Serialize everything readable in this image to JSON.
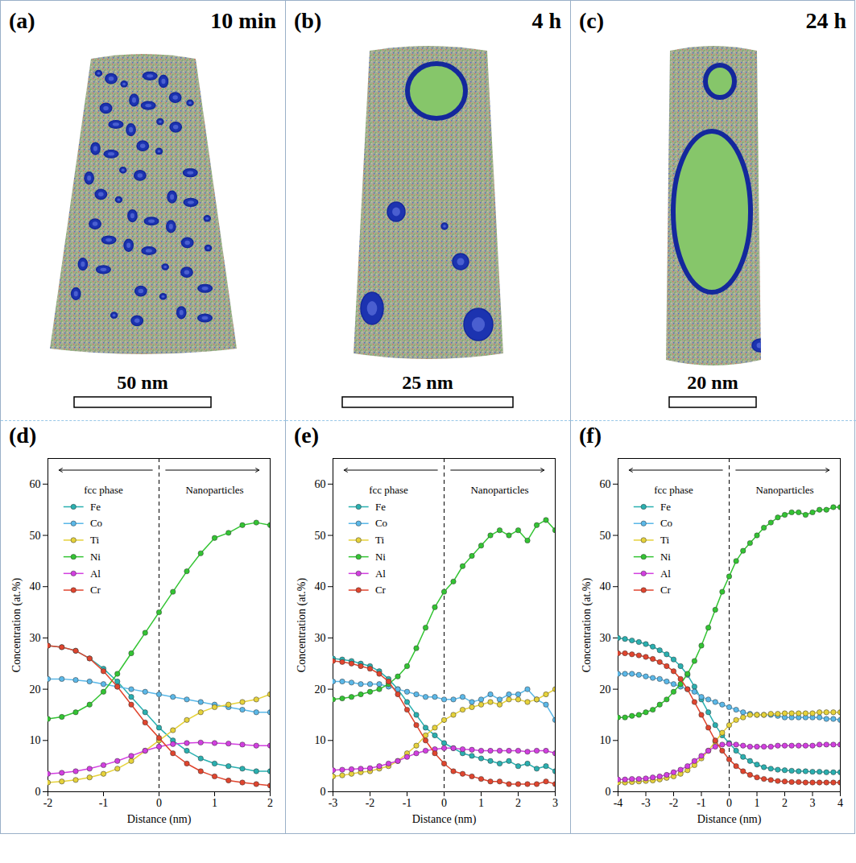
{
  "panels": [
    {
      "label": "(a)",
      "time": "10 min",
      "scale_bar": "50 nm"
    },
    {
      "label": "(b)",
      "time": "4 h",
      "scale_bar": "25 nm"
    },
    {
      "label": "(c)",
      "time": "24 h",
      "scale_bar": "20 nm"
    }
  ],
  "chart_data": [
    {
      "type": "line",
      "title": "(d)",
      "x_label": "Distance (nm)",
      "y_label": "Concentration (at.%)",
      "xlim": [
        -2,
        2
      ],
      "xticks": [
        -2,
        -1,
        0,
        1,
        2
      ],
      "ylim": [
        0,
        65
      ],
      "yticks": [
        0,
        10,
        20,
        30,
        40,
        50,
        60
      ],
      "marker": "circle",
      "line_style": "solid",
      "legend": "upper left",
      "vline": 0,
      "annotations": [
        "fcc phase",
        "Nanoparticles"
      ],
      "x": [
        -2,
        -1.75,
        -1.5,
        -1.25,
        -1,
        -0.75,
        -0.5,
        -0.25,
        0,
        0.25,
        0.5,
        0.75,
        1,
        1.25,
        1.5,
        1.75,
        2
      ],
      "series": [
        {
          "name": "Fe",
          "color": "#2ab0b0",
          "values": [
            28.5,
            28.2,
            27.5,
            26,
            24,
            21.5,
            18.5,
            15.5,
            12.5,
            10,
            8,
            6.5,
            5.5,
            5,
            4.5,
            4,
            4
          ]
        },
        {
          "name": "Co",
          "color": "#5bb8e8",
          "values": [
            22,
            22,
            21.8,
            21.5,
            21,
            20.5,
            20,
            19.5,
            19,
            18.5,
            18,
            17.5,
            17,
            16.5,
            16,
            15.5,
            15.5
          ]
        },
        {
          "name": "Ti",
          "color": "#e6d23a",
          "values": [
            1.8,
            2,
            2.3,
            2.8,
            3.5,
            4.5,
            6,
            8,
            10,
            12,
            14,
            15.5,
            16.5,
            17,
            17.5,
            18,
            19
          ]
        },
        {
          "name": "Ni",
          "color": "#33c433",
          "values": [
            14.2,
            14.6,
            15.5,
            17,
            19.5,
            23,
            27,
            31,
            35,
            39,
            43,
            46.5,
            49.5,
            50.5,
            52,
            52.5,
            52
          ]
        },
        {
          "name": "Al",
          "color": "#d23fe0",
          "values": [
            3.5,
            3.7,
            4,
            4.5,
            5.2,
            6,
            7,
            8,
            8.8,
            9.3,
            9.5,
            9.6,
            9.5,
            9.4,
            9.2,
            9,
            9
          ]
        },
        {
          "name": "Cr",
          "color": "#e0452e",
          "values": [
            28.5,
            28.2,
            27.5,
            26,
            23.5,
            20.5,
            17,
            13.5,
            10.5,
            7.5,
            5.5,
            4,
            3,
            2.2,
            1.8,
            1.5,
            1.2
          ]
        }
      ]
    },
    {
      "type": "line",
      "title": "(e)",
      "x_label": "Distance (nm)",
      "y_label": "Concentration (at.%)",
      "xlim": [
        -3,
        3
      ],
      "xticks": [
        -3,
        -2,
        -1,
        0,
        1,
        2,
        3
      ],
      "ylim": [
        0,
        65
      ],
      "yticks": [
        0,
        10,
        20,
        30,
        40,
        50,
        60
      ],
      "marker": "circle",
      "line_style": "solid",
      "legend": "upper left",
      "vline": 0,
      "annotations": [
        "fcc phase",
        "Nanoparticles"
      ],
      "x": [
        -3,
        -2.75,
        -2.5,
        -2.25,
        -2,
        -1.75,
        -1.5,
        -1.25,
        -1,
        -0.75,
        -0.5,
        -0.25,
        0,
        0.25,
        0.5,
        0.75,
        1,
        1.25,
        1.5,
        1.75,
        2,
        2.25,
        2.5,
        2.75,
        3
      ],
      "series": [
        {
          "name": "Fe",
          "color": "#2ab0b0",
          "values": [
            26,
            25.8,
            25.5,
            25,
            24.5,
            23.5,
            22,
            20,
            17.5,
            15,
            12.5,
            11,
            9.5,
            8.5,
            7.5,
            7,
            6.5,
            6,
            5.5,
            6,
            5,
            5.5,
            4.5,
            5,
            4
          ]
        },
        {
          "name": "Co",
          "color": "#5bb8e8",
          "values": [
            21.5,
            21.5,
            21.3,
            21,
            21,
            21,
            20.5,
            20,
            19.5,
            19,
            18.5,
            18.5,
            18,
            18,
            18.5,
            17.5,
            18,
            19,
            18,
            19,
            19,
            20,
            18,
            17,
            14
          ]
        },
        {
          "name": "Ti",
          "color": "#e6d23a",
          "values": [
            3,
            3.2,
            3.5,
            3.8,
            4,
            4.5,
            5,
            6,
            7.5,
            9,
            11,
            12.5,
            14,
            15,
            16,
            16.5,
            17,
            17.5,
            17,
            18,
            18,
            17.5,
            18,
            19,
            20
          ]
        },
        {
          "name": "Ni",
          "color": "#33c433",
          "values": [
            18,
            18.2,
            18.5,
            19,
            19.5,
            20,
            21,
            22.5,
            24.5,
            28,
            32,
            36,
            39,
            41,
            44,
            46,
            48,
            50,
            51,
            50,
            51,
            49,
            52,
            53,
            51
          ]
        },
        {
          "name": "Al",
          "color": "#d23fe0",
          "values": [
            4.2,
            4.3,
            4.4,
            4.5,
            4.6,
            5,
            5.5,
            6,
            6.8,
            7.5,
            8,
            8.3,
            8.5,
            8.5,
            8.3,
            8.2,
            8,
            8,
            8,
            8,
            8,
            7.8,
            8,
            8,
            7.5
          ]
        },
        {
          "name": "Cr",
          "color": "#e0452e",
          "values": [
            25.5,
            25.3,
            25,
            24.5,
            24,
            23,
            21.5,
            19,
            16,
            13,
            10,
            7.5,
            5.5,
            4,
            3.5,
            3,
            2.5,
            2,
            2,
            1.5,
            1.5,
            1.5,
            1.5,
            2,
            1.5
          ]
        }
      ]
    },
    {
      "type": "line",
      "title": "(f)",
      "x_label": "Distance (nm)",
      "y_label": "Concentration (at.%)",
      "xlim": [
        -4,
        4
      ],
      "xticks": [
        -4,
        -3,
        -2,
        -1,
        0,
        1,
        2,
        3,
        4
      ],
      "ylim": [
        0,
        65
      ],
      "yticks": [
        0,
        10,
        20,
        30,
        40,
        50,
        60
      ],
      "marker": "circle",
      "line_style": "solid",
      "legend": "upper left",
      "vline": 0,
      "annotations": [
        "fcc phase",
        "Nanoparticles"
      ],
      "x": [
        -4,
        -3.75,
        -3.5,
        -3.25,
        -3,
        -2.75,
        -2.5,
        -2.25,
        -2,
        -1.75,
        -1.5,
        -1.25,
        -1,
        -0.75,
        -0.5,
        -0.25,
        0,
        0.25,
        0.5,
        0.75,
        1,
        1.25,
        1.5,
        1.75,
        2,
        2.25,
        2.5,
        2.75,
        3,
        3.25,
        3.5,
        3.75,
        4
      ],
      "series": [
        {
          "name": "Fe",
          "color": "#2ab0b0",
          "values": [
            30,
            29.8,
            29.5,
            29.2,
            28.8,
            28.3,
            27.6,
            26.8,
            25.8,
            24.5,
            22.8,
            20.5,
            18,
            15.5,
            13,
            11,
            9.5,
            8,
            6.8,
            6,
            5.3,
            4.8,
            4.5,
            4.3,
            4.2,
            4.1,
            4,
            4,
            3.9,
            3.9,
            3.8,
            3.8,
            3.8
          ]
        },
        {
          "name": "Co",
          "color": "#5bb8e8",
          "values": [
            23,
            23,
            23,
            22.8,
            22.5,
            22.2,
            22,
            21.5,
            21,
            20.5,
            20,
            19.5,
            18.5,
            18,
            17.5,
            17,
            16.5,
            16,
            15.5,
            15.2,
            15,
            15,
            15,
            14.8,
            14.5,
            14.5,
            14.5,
            14.5,
            14.5,
            14.5,
            14.2,
            14.2,
            14
          ]
        },
        {
          "name": "Ti",
          "color": "#e6d23a",
          "values": [
            1.8,
            1.8,
            1.9,
            2,
            2.1,
            2.2,
            2.4,
            2.7,
            3,
            3.5,
            4.2,
            5.2,
            6.5,
            8,
            9.8,
            11.5,
            13,
            14,
            14.5,
            15,
            15,
            15,
            15.2,
            15.2,
            15.3,
            15.3,
            15.3,
            15.3,
            15.3,
            15.5,
            15.5,
            15.5,
            15.5
          ]
        },
        {
          "name": "Ni",
          "color": "#33c433",
          "values": [
            14.5,
            14.5,
            14.8,
            15,
            15.5,
            16,
            17,
            18,
            19.5,
            21,
            23,
            25.5,
            28.5,
            32,
            35.5,
            39,
            42,
            45,
            47,
            48.5,
            50,
            51.5,
            52.5,
            53.5,
            54,
            54.5,
            54.5,
            54,
            54.5,
            55,
            55,
            55.5,
            55.5
          ]
        },
        {
          "name": "Al",
          "color": "#d23fe0",
          "values": [
            2.4,
            2.4,
            2.5,
            2.5,
            2.6,
            2.8,
            3,
            3.3,
            3.8,
            4.3,
            5,
            6,
            7,
            8,
            8.8,
            9.2,
            9.3,
            9.2,
            9,
            8.8,
            8.8,
            8.8,
            8.8,
            9,
            9,
            9,
            9,
            9,
            9,
            9.2,
            9.2,
            9.2,
            9.2
          ]
        },
        {
          "name": "Cr",
          "color": "#e0452e",
          "values": [
            27,
            27,
            26.8,
            26.6,
            26.3,
            25.9,
            25.3,
            24.5,
            23.5,
            22,
            20,
            17.5,
            15,
            12.5,
            10,
            8,
            6.3,
            5,
            4,
            3.3,
            2.8,
            2.5,
            2.3,
            2.1,
            2,
            1.9,
            1.9,
            1.8,
            1.8,
            1.8,
            1.8,
            1.8,
            1.8
          ]
        }
      ]
    }
  ]
}
